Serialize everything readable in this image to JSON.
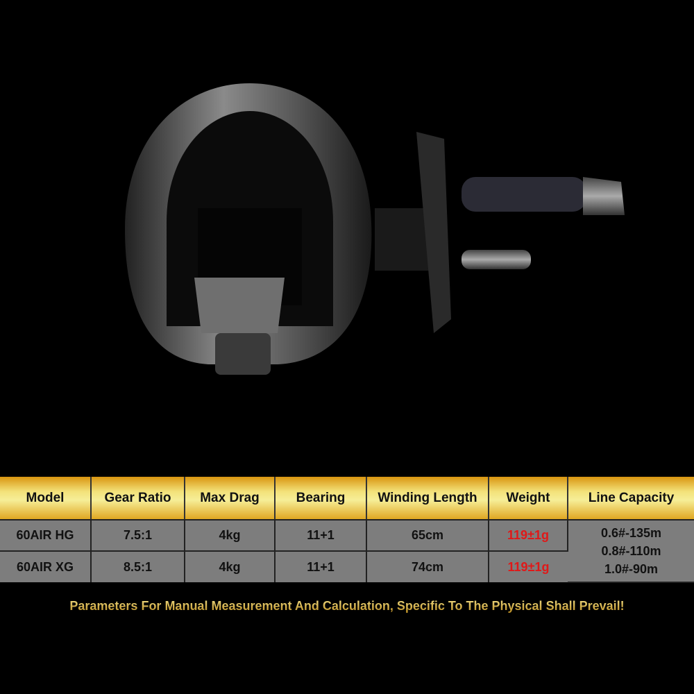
{
  "table": {
    "headers": [
      "Model",
      "Gear Ratio",
      "Max Drag",
      "Bearing",
      "Winding Length",
      "Weight",
      "Line Capacity"
    ],
    "rows": [
      [
        "60AIR HG",
        "7.5:1",
        "4kg",
        "11+1",
        "65cm",
        "119±1g"
      ],
      [
        "60AIR XG",
        "8.5:1",
        "4kg",
        "11+1",
        "74cm",
        "119±1g"
      ]
    ],
    "line_capacity": [
      "0.6#-135m",
      "0.8#-110m",
      "1.0#-90m"
    ]
  },
  "footer_note": "Parameters For Manual Measurement And Calculation, Specific To The Physical Shall Prevail!",
  "colors": {
    "header_gold": "#f3e27a",
    "row_gray": "#7d7d7d",
    "weight_red": "#e01818"
  }
}
